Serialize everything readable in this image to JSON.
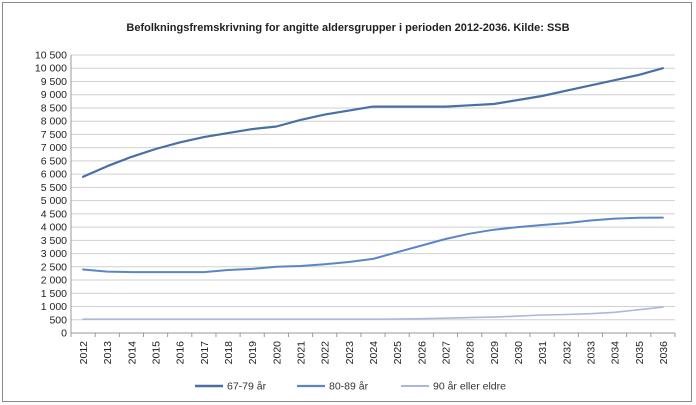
{
  "chart_data": {
    "type": "line",
    "title": "Befolkningsfremskrivning for angitte aldersgrupper i perioden 2012-2036. Kilde: SSB",
    "xlabel": "",
    "ylabel": "",
    "ylim": [
      0,
      10500
    ],
    "ytick_step": 500,
    "ytick_labels": [
      "0",
      "500",
      "1 000",
      "1 500",
      "2 000",
      "2 500",
      "3 000",
      "3 500",
      "4 000",
      "4 500",
      "5 000",
      "5 500",
      "6 000",
      "6 500",
      "7 000",
      "7 500",
      "8 000",
      "8 500",
      "9 000",
      "9 500",
      "10 000",
      "10 500"
    ],
    "grid": true,
    "legend_position": "bottom",
    "x": [
      "2012",
      "2013",
      "2014",
      "2015",
      "2016",
      "2017",
      "2018",
      "2019",
      "2020",
      "2021",
      "2022",
      "2023",
      "2024",
      "2025",
      "2026",
      "2027",
      "2028",
      "2029",
      "2030",
      "2031",
      "2032",
      "2033",
      "2034",
      "2035",
      "2036"
    ],
    "series": [
      {
        "name": "67-79 år",
        "color": "#4a6fa5",
        "width": 2.2,
        "values": [
          5900,
          6300,
          6650,
          6950,
          7200,
          7400,
          7550,
          7700,
          7800,
          8050,
          8250,
          8400,
          8550,
          8550,
          8550,
          8550,
          8600,
          8650,
          8800,
          8950,
          9150,
          9350,
          9550,
          9750,
          10000
        ]
      },
      {
        "name": "80-89 år",
        "color": "#5b86c5",
        "width": 2,
        "values": [
          2400,
          2320,
          2300,
          2300,
          2300,
          2300,
          2380,
          2420,
          2500,
          2530,
          2600,
          2680,
          2800,
          3050,
          3300,
          3550,
          3750,
          3900,
          4000,
          4080,
          4150,
          4250,
          4320,
          4350,
          4360
        ]
      },
      {
        "name": "90 år eller eldre",
        "color": "#a9b9d9",
        "width": 1.6,
        "values": [
          520,
          520,
          520,
          520,
          520,
          520,
          520,
          520,
          520,
          520,
          520,
          520,
          520,
          530,
          540,
          560,
          580,
          600,
          640,
          680,
          700,
          730,
          780,
          880,
          980
        ]
      }
    ]
  }
}
